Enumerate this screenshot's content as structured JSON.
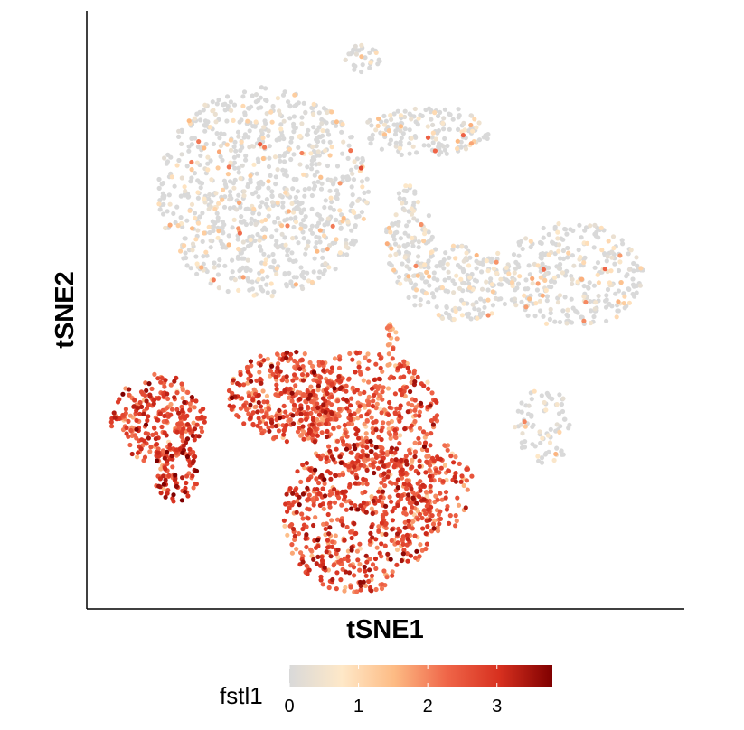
{
  "chart_data": {
    "type": "scatter",
    "xlabel": "tSNE1",
    "ylabel": "tSNE2",
    "color_variable": "fstl1",
    "axis_ticks_shown": false,
    "grid": false,
    "legend_position": "bottom",
    "color_scale": {
      "min": 0,
      "max": 3.8,
      "ticks": [
        0,
        1,
        2,
        3
      ],
      "tick_labels": [
        "0",
        "1",
        "2",
        "3"
      ],
      "colors": [
        "#d9d9d9",
        "#fee8c8",
        "#fdbb84",
        "#ef6548",
        "#d7301f",
        "#7f0000"
      ]
    },
    "point_color_background": "#d9d9d9",
    "clusters": [
      {
        "cx": -3,
        "cy": 35.5,
        "rx": 3,
        "ry": 2,
        "n": 30,
        "expr": 0.35
      },
      {
        "cx": -20,
        "cy": 18,
        "rx": 18,
        "ry": 14,
        "n": 900,
        "expr": 0.3
      },
      {
        "cx": 8,
        "cy": 26,
        "rx": 11,
        "ry": 3.5,
        "n": 160,
        "expr": 0.35
      },
      {
        "cx": 5,
        "cy": 12,
        "rx": 4,
        "ry": 7,
        "n": 110,
        "expr": 0.5
      },
      {
        "cx": 14,
        "cy": 6,
        "rx": 10,
        "ry": 5,
        "n": 200,
        "expr": 0.35
      },
      {
        "cx": 33,
        "cy": 7,
        "rx": 12,
        "ry": 7,
        "n": 300,
        "expr": 0.35
      },
      {
        "cx": 28,
        "cy": -13,
        "rx": 5,
        "ry": 5,
        "n": 80,
        "expr": 0.45
      },
      {
        "cx": -38,
        "cy": -12,
        "rx": 8,
        "ry": 6,
        "n": 260,
        "expr": 2.6
      },
      {
        "cx": -35,
        "cy": -19,
        "rx": 4,
        "ry": 4,
        "n": 90,
        "expr": 2.9
      },
      {
        "cx": -16,
        "cy": -9,
        "rx": 10,
        "ry": 6,
        "n": 350,
        "expr": 2.5
      },
      {
        "cx": -2,
        "cy": -11,
        "rx": 12,
        "ry": 8,
        "n": 420,
        "expr": 2.3
      },
      {
        "cx": -4,
        "cy": -25,
        "rx": 13,
        "ry": 10,
        "n": 600,
        "expr": 2.6
      },
      {
        "cx": 10,
        "cy": -21,
        "rx": 6,
        "ry": 6,
        "n": 130,
        "expr": 2.4
      },
      {
        "cx": 2,
        "cy": -1,
        "rx": 1,
        "ry": 2,
        "n": 15,
        "expr": 1.8
      }
    ],
    "xlim": [
      -50,
      52
    ],
    "ylim": [
      -37,
      42
    ]
  }
}
